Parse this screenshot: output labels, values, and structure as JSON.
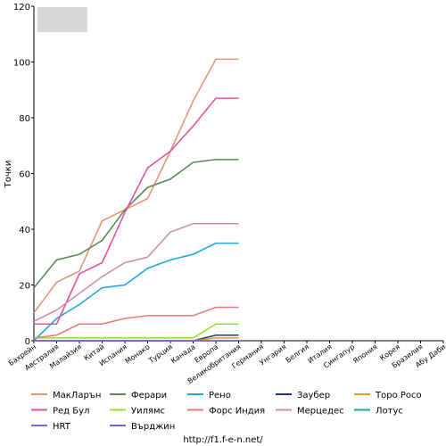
{
  "chart_data": {
    "type": "line",
    "ylabel": "Точки",
    "footer": "http://f1.f-e-n.net/",
    "categories": [
      "Бахрейн",
      "Австралия",
      "Малайзия",
      "Китай",
      "Испания",
      "Монако",
      "Турция",
      "Канада",
      "Европа",
      "Великобритания",
      "Германия",
      "Унгария",
      "Белгия",
      "Италия",
      "Сингапур",
      "Япония",
      "Корея",
      "Бразилия",
      "Абу Даби"
    ],
    "ylim": [
      0,
      120
    ],
    "yticks": [
      0,
      20,
      40,
      60,
      80,
      100,
      120
    ],
    "grid": false,
    "legend": "bottom",
    "series": [
      {
        "name": "МакЛарън",
        "color": "#e8967a",
        "values": [
          10,
          21,
          25,
          43,
          47,
          51,
          68,
          86,
          101,
          101,
          null,
          null,
          null,
          null,
          null,
          null,
          null,
          null,
          null
        ]
      },
      {
        "name": "Ферари",
        "color": "#5a8a5a",
        "values": [
          19,
          29,
          31,
          36,
          47,
          55,
          58,
          64,
          65,
          65,
          null,
          null,
          null,
          null,
          null,
          null,
          null,
          null,
          null
        ]
      },
      {
        "name": "Рено",
        "color": "#1ea8e0",
        "values": [
          0,
          8,
          13,
          19,
          20,
          26,
          29,
          31,
          35,
          35,
          null,
          null,
          null,
          null,
          null,
          null,
          null,
          null,
          null
        ]
      },
      {
        "name": "Заубер",
        "color": "#1a3a8a",
        "values": [
          0,
          0,
          0,
          0,
          0,
          0,
          0,
          0,
          2,
          2,
          null,
          null,
          null,
          null,
          null,
          null,
          null,
          null,
          null
        ]
      },
      {
        "name": "Торо Росо",
        "color": "#e0a010",
        "values": [
          0,
          0,
          0,
          0,
          0,
          0,
          0,
          0,
          1,
          1,
          null,
          null,
          null,
          null,
          null,
          null,
          null,
          null,
          null
        ]
      },
      {
        "name": "Ред Бул",
        "color": "#e850a0",
        "values": [
          6,
          6,
          24,
          28,
          46,
          62,
          68,
          77,
          87,
          87,
          null,
          null,
          null,
          null,
          null,
          null,
          null,
          null,
          null
        ]
      },
      {
        "name": "Уилямс",
        "color": "#90e020",
        "values": [
          1,
          1,
          1,
          1,
          1,
          1,
          1,
          1,
          6,
          6,
          null,
          null,
          null,
          null,
          null,
          null,
          null,
          null,
          null
        ]
      },
      {
        "name": "Форс Индия",
        "color": "#e87a7a",
        "values": [
          1,
          2,
          6,
          6,
          8,
          9,
          9,
          9,
          12,
          12,
          null,
          null,
          null,
          null,
          null,
          null,
          null,
          null,
          null
        ]
      },
      {
        "name": "Мерцедес",
        "color": "#c890a8",
        "values": [
          7,
          11,
          17,
          23,
          28,
          30,
          39,
          42,
          42,
          42,
          null,
          null,
          null,
          null,
          null,
          null,
          null,
          null,
          null
        ]
      },
      {
        "name": "Лотус",
        "color": "#20a0a0",
        "values": [
          0,
          0,
          0,
          0,
          0,
          0,
          0,
          0,
          0,
          0,
          null,
          null,
          null,
          null,
          null,
          null,
          null,
          null,
          null
        ]
      },
      {
        "name": "HRT",
        "color": "#7070e0",
        "values": [
          0,
          0,
          0,
          0,
          0,
          0,
          0,
          0,
          0,
          0,
          null,
          null,
          null,
          null,
          null,
          null,
          null,
          null,
          null
        ]
      },
      {
        "name": "Върджин",
        "color": "#8060d0",
        "values": [
          0,
          0,
          0,
          0,
          0,
          0,
          0,
          0,
          0,
          0,
          null,
          null,
          null,
          null,
          null,
          null,
          null,
          null,
          null
        ]
      }
    ]
  }
}
